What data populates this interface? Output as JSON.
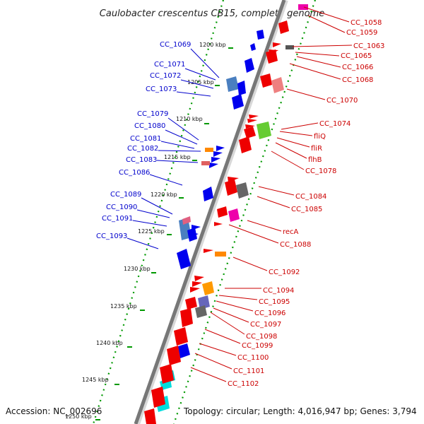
{
  "title": "Caulobacter crescentus CB15, complete genome",
  "footer": {
    "accession": "Accession: NC_002696",
    "summary": "Topology: circular; Length: 4,016,947 bp; Genes: 3,794"
  },
  "kbp_labels": [
    "1200 kbp",
    "1205 kbp",
    "1210 kbp",
    "1215 kbp",
    "1220 kbp",
    "1225 kbp",
    "1230 kbp",
    "1235 kbp",
    "1240 kbp",
    "1245 kbp",
    "1250 kbp"
  ],
  "left_genes": [
    "CC_1069",
    "CC_1071",
    "CC_1072",
    "CC_1073",
    "CC_1079",
    "CC_1080",
    "CC_1081",
    "CC_1082",
    "CC_1083",
    "CC_1086",
    "CC_1089",
    "CC_1090",
    "CC_1091",
    "CC_1093"
  ],
  "right_genes": [
    "CC_1058",
    "CC_1059",
    "CC_1063",
    "CC_1065",
    "CC_1066",
    "CC_1068",
    "CC_1070",
    "CC_1074",
    "fliQ",
    "fliR",
    "flhB",
    "CC_1078",
    "CC_1084",
    "CC_1085",
    "recA",
    "CC_1088",
    "CC_1092",
    "CC_1094",
    "CC_1095",
    "CC_1096",
    "CC_1097",
    "CC_1098",
    "CC_1099",
    "CC_1100",
    "CC_1101",
    "CC_1102"
  ],
  "colors": {
    "forward_strand": "#ff0000",
    "reverse_strand": "#0000ff",
    "backbone": "#808080",
    "tick": "#009900",
    "left_label": "#0000cc",
    "right_label": "#cc0000"
  }
}
